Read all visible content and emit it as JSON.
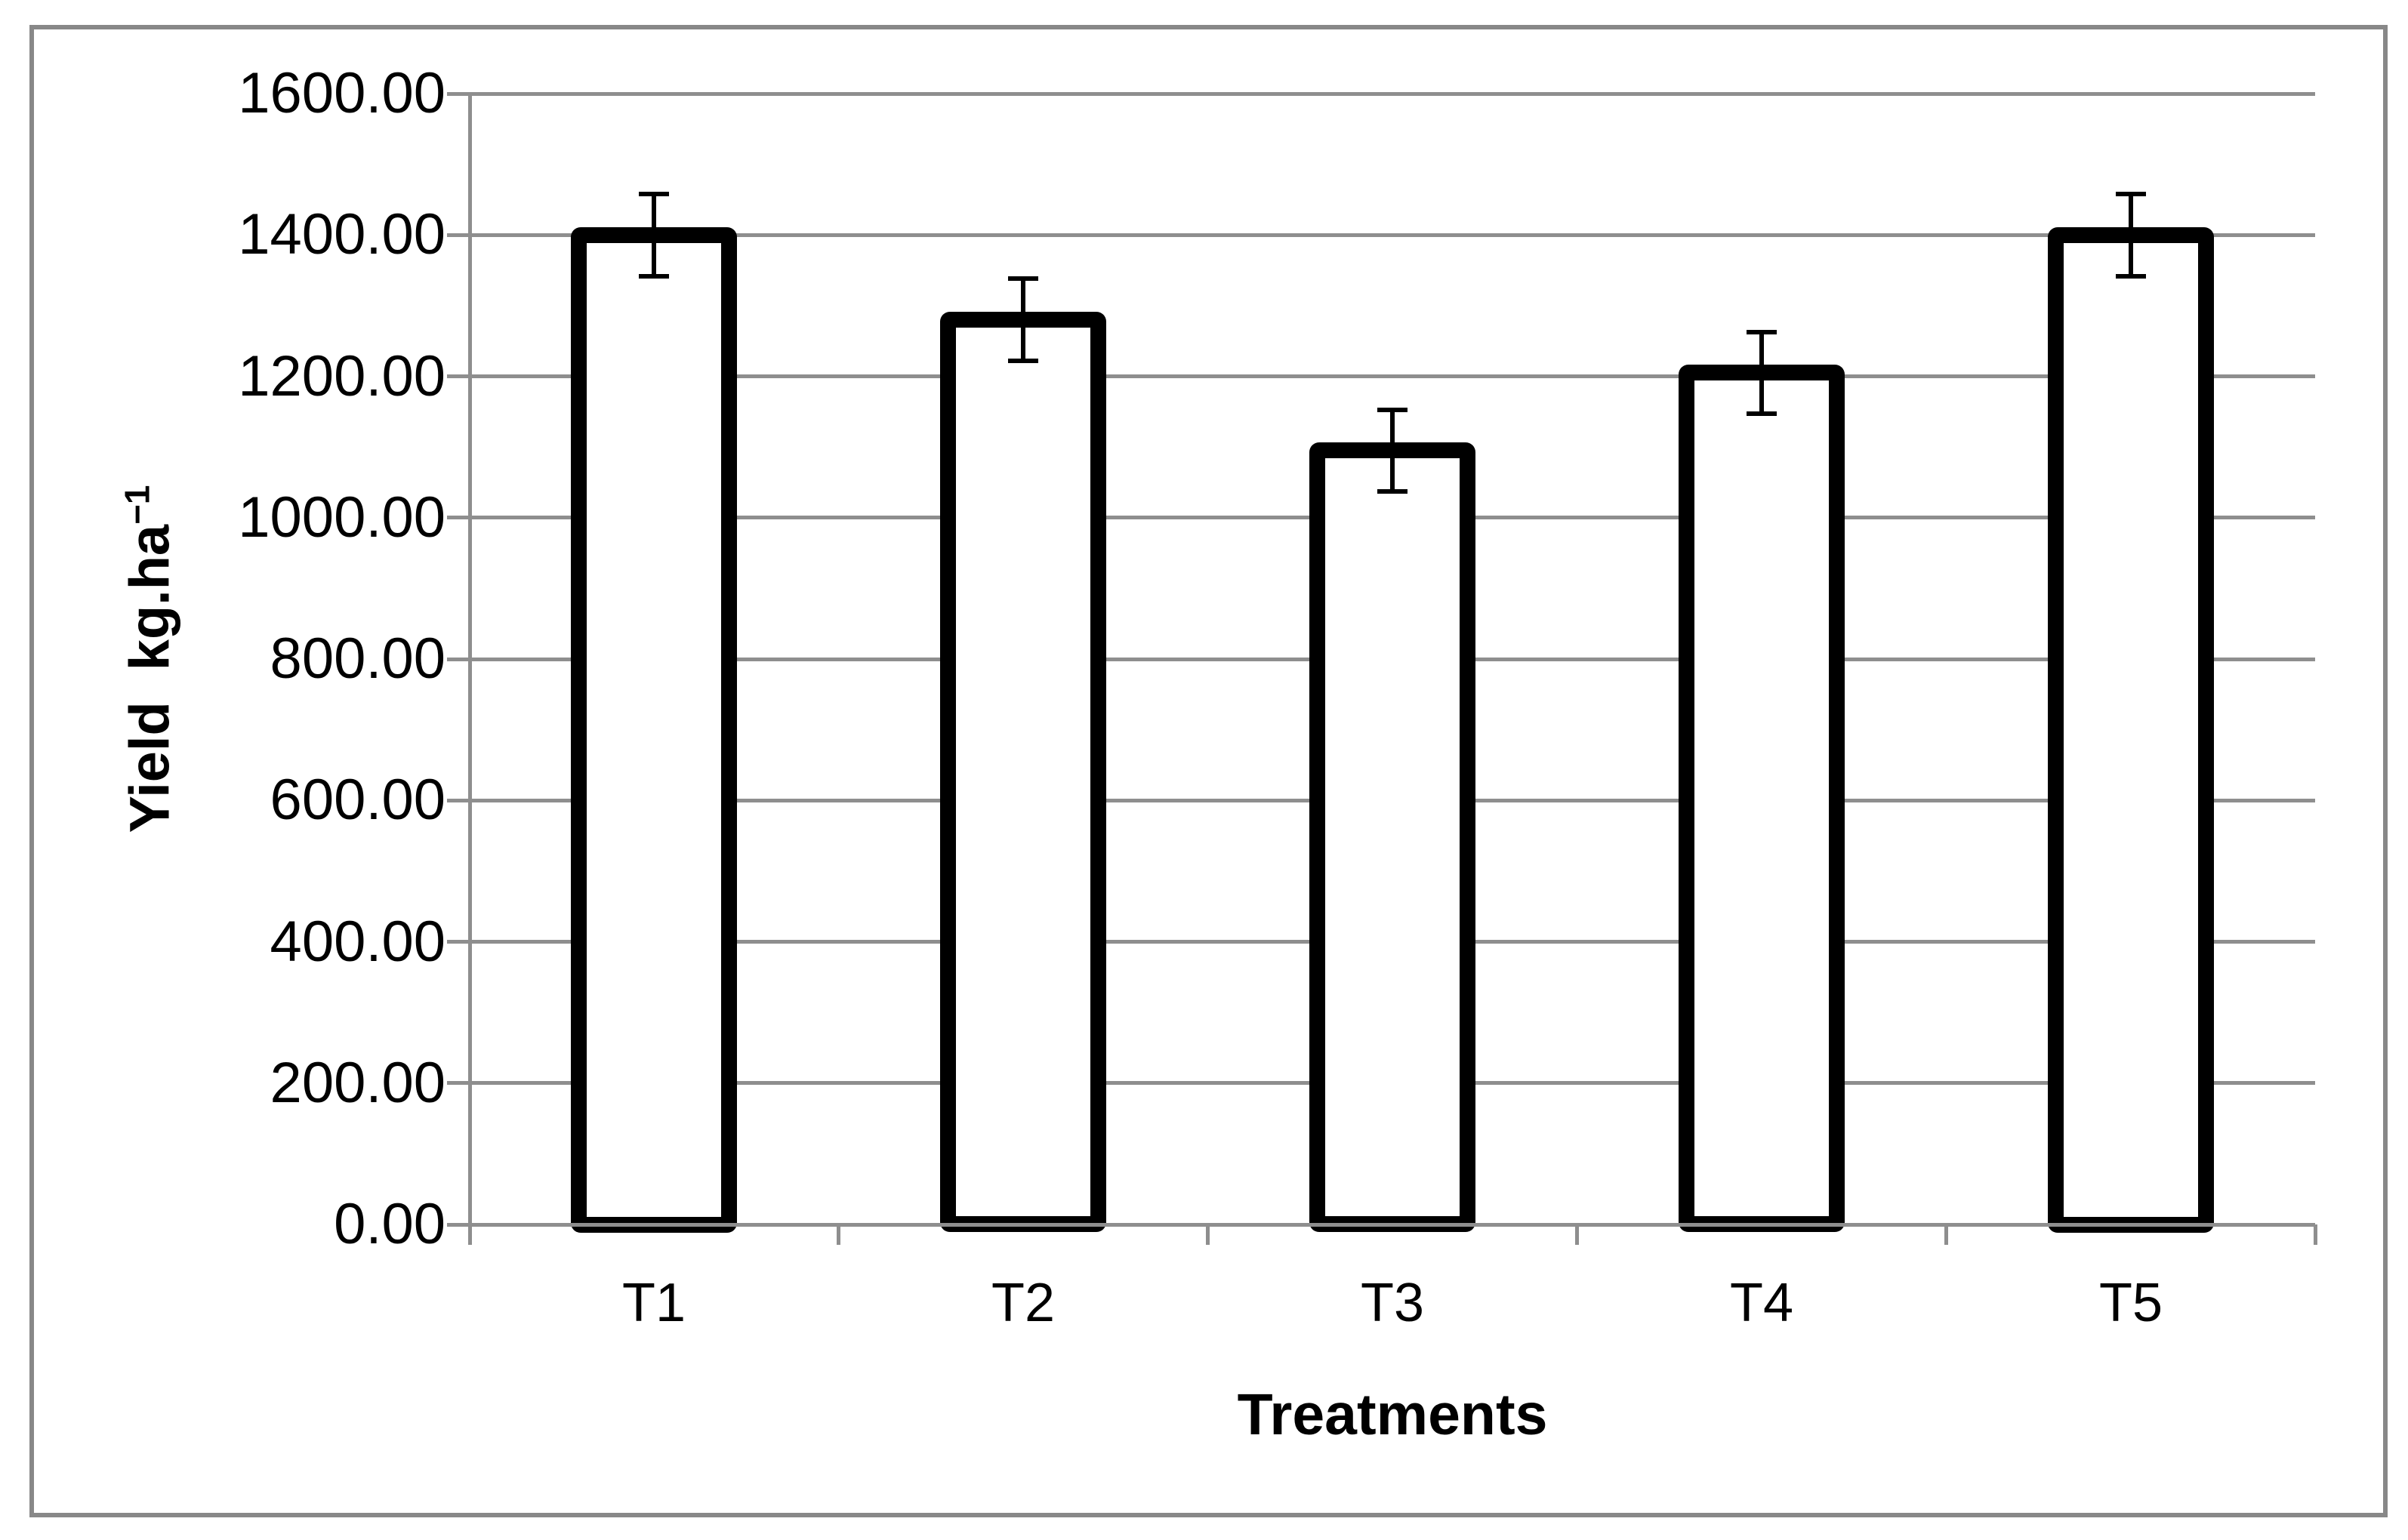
{
  "chart_data": {
    "type": "bar",
    "title": "",
    "categories": [
      "T1",
      "T2",
      "T3",
      "T4",
      "T5"
    ],
    "values": [
      1400,
      1280,
      1095,
      1205,
      1400
    ],
    "error_bars": [
      58,
      58,
      58,
      58,
      58
    ],
    "xlabel": "Treatments",
    "ylabel": "Yield kg.ha⁻¹",
    "ylabel_base": "Yield  kg.ha",
    "ylabel_superscript": "−1",
    "ylim": [
      0,
      1600
    ],
    "ytick_step": 200,
    "ytick_labels": [
      "0.00",
      "200.00",
      "400.00",
      "600.00",
      "800.00",
      "1000.00",
      "1200.00",
      "1400.00",
      "1600.00"
    ],
    "grid": true,
    "legend": "none",
    "bar_fill": "#ffffff",
    "bar_border_color": "#000000",
    "error_bar_color": "#000000",
    "grid_color": "#8e8e8e",
    "axis_color": "#8e8e8e",
    "frame_color": "#888888",
    "text_color": "#000000"
  }
}
